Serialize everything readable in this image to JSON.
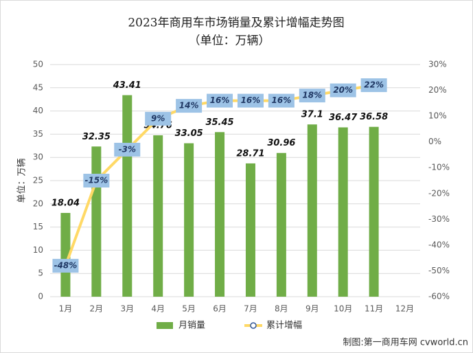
{
  "chart_data": {
    "type": "bar",
    "title": "2023年商用车市场销量及累计增幅走势图",
    "subtitle": "（单位：万辆）",
    "y_label": "单位：万辆",
    "source": "制图:第一商用车网 cvworld.cn",
    "categories": [
      "1月",
      "2月",
      "3月",
      "4月",
      "5月",
      "6月",
      "7月",
      "8月",
      "9月",
      "10月",
      "11月",
      "12月"
    ],
    "series": [
      {
        "name": "月销量",
        "type": "bar",
        "color": "#70ad47",
        "values": [
          18.04,
          32.35,
          43.41,
          34.76,
          33.05,
          35.45,
          28.71,
          30.96,
          37.1,
          36.47,
          36.58,
          null
        ]
      },
      {
        "name": "累计增幅",
        "type": "line",
        "axis": "y2",
        "color": "#ffd966",
        "values": [
          -48,
          -15,
          -3,
          9,
          14,
          16,
          16,
          16,
          18,
          20,
          22,
          null
        ],
        "value_labels": [
          "-48%",
          "-15%",
          "-3%",
          "9%",
          "14%",
          "16%",
          "16%",
          "16%",
          "18%",
          "20%",
          "22%",
          null
        ]
      }
    ],
    "ylim": [
      0,
      50
    ],
    "yticks": [
      0,
      5,
      10,
      15,
      20,
      25,
      30,
      35,
      40,
      45,
      50
    ],
    "y2lim": [
      -60,
      30
    ],
    "y2ticks": [
      {
        "value": -60,
        "label": "-60%"
      },
      {
        "value": -50,
        "label": "-50%"
      },
      {
        "value": -40,
        "label": "-40%"
      },
      {
        "value": -30,
        "label": "-30%"
      },
      {
        "value": -20,
        "label": "-20%"
      },
      {
        "value": -10,
        "label": "-10%"
      },
      {
        "value": 0,
        "label": "0%"
      },
      {
        "value": 10,
        "label": "10%"
      },
      {
        "value": 20,
        "label": "20%"
      },
      {
        "value": 30,
        "label": "30%"
      }
    ],
    "grid": true,
    "legend": "bottom"
  }
}
